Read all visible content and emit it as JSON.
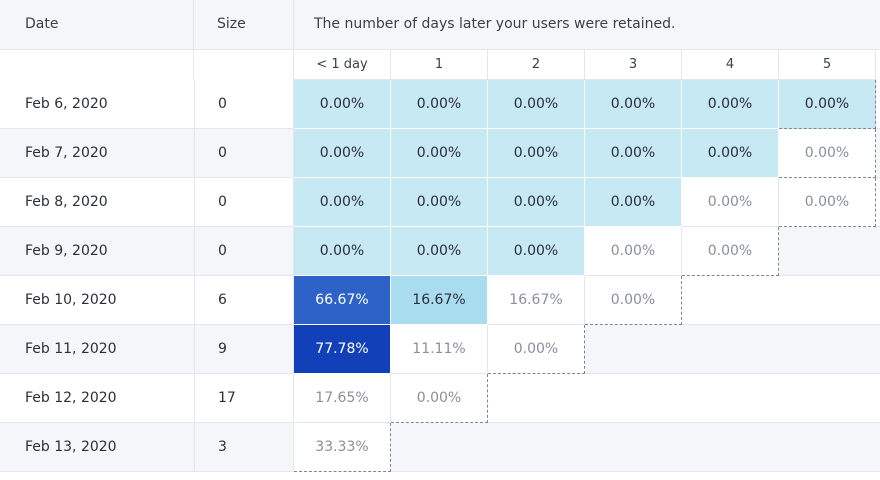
{
  "header": {
    "date_label": "Date",
    "size_label": "Size",
    "title": "The number of days later your users were retained."
  },
  "days": [
    "< 1 day",
    "1",
    "2",
    "3",
    "4",
    "5"
  ],
  "rows": [
    {
      "date": "Feb 6, 2020",
      "size": "0",
      "cells": [
        "0.00%",
        "0.00%",
        "0.00%",
        "0.00%",
        "0.00%",
        "0.00%"
      ]
    },
    {
      "date": "Feb 7, 2020",
      "size": "0",
      "cells": [
        "0.00%",
        "0.00%",
        "0.00%",
        "0.00%",
        "0.00%",
        "0.00%"
      ]
    },
    {
      "date": "Feb 8, 2020",
      "size": "0",
      "cells": [
        "0.00%",
        "0.00%",
        "0.00%",
        "0.00%",
        "0.00%",
        "0.00%"
      ]
    },
    {
      "date": "Feb 9, 2020",
      "size": "0",
      "cells": [
        "0.00%",
        "0.00%",
        "0.00%",
        "0.00%",
        "0.00%"
      ]
    },
    {
      "date": "Feb 10, 2020",
      "size": "6",
      "cells": [
        "66.67%",
        "16.67%",
        "16.67%",
        "0.00%"
      ]
    },
    {
      "date": "Feb 11, 2020",
      "size": "9",
      "cells": [
        "77.78%",
        "11.11%",
        "0.00%"
      ]
    },
    {
      "date": "Feb 12, 2020",
      "size": "17",
      "cells": [
        "17.65%",
        "0.00%"
      ]
    },
    {
      "date": "Feb 13, 2020",
      "size": "3",
      "cells": [
        "33.33%"
      ]
    }
  ],
  "cell_styles": [
    [
      "low",
      "low",
      "low",
      "low",
      "low",
      "low"
    ],
    [
      "low",
      "low",
      "low",
      "low",
      "low",
      "plain"
    ],
    [
      "low",
      "low",
      "low",
      "low",
      "plain",
      "plain"
    ],
    [
      "low",
      "low",
      "low",
      "plain",
      "plain"
    ],
    [
      "hi1",
      "mid",
      "plain",
      "plain"
    ],
    [
      "hi2",
      "plain",
      "plain"
    ],
    [
      "plain",
      "plain"
    ],
    [
      "plain"
    ]
  ],
  "colors": {
    "low": "#c6e9f3",
    "mid": "#a9dcef",
    "high_1": "#2d63c8",
    "high_2": "#1140b8",
    "header_bg": "#f5f6fa"
  }
}
